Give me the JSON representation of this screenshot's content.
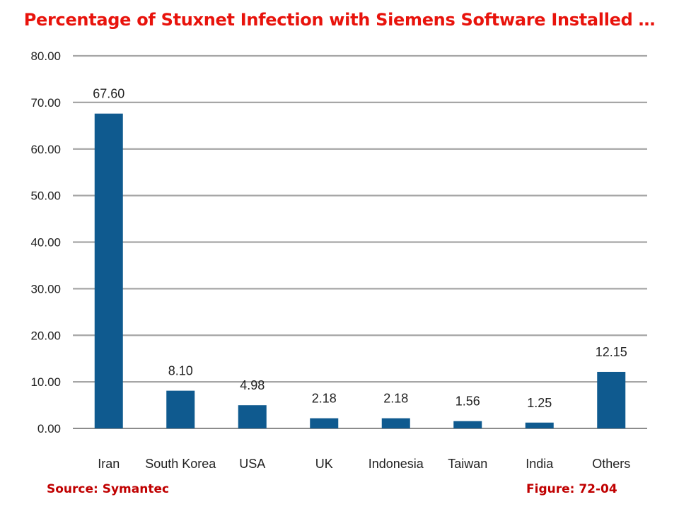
{
  "title": "Percentage of Stuxnet Infection with Siemens Software Installed …",
  "footer": {
    "source": "Source:  Symantec",
    "figure": "Figure: 72-04"
  },
  "colors": {
    "title": "#e8130c",
    "footer": "#c00000",
    "bar": "#0f5a8f",
    "grid": "#a6a6a6"
  },
  "chart_data": {
    "type": "bar",
    "categories": [
      "Iran",
      "South Korea",
      "USA",
      "UK",
      "Indonesia",
      "Taiwan",
      "India",
      "Others"
    ],
    "values": [
      67.6,
      8.1,
      4.98,
      2.18,
      2.18,
      1.56,
      1.25,
      12.15
    ],
    "data_labels": [
      "67.60",
      "8.10",
      "4.98",
      "2.18",
      "2.18",
      "1.56",
      "1.25",
      "12.15"
    ],
    "y_ticks": [
      "0.00",
      "10.00",
      "20.00",
      "30.00",
      "40.00",
      "50.00",
      "60.00",
      "70.00",
      "80.00"
    ],
    "ylim": [
      0,
      80
    ],
    "grid": true,
    "legend": "none"
  }
}
